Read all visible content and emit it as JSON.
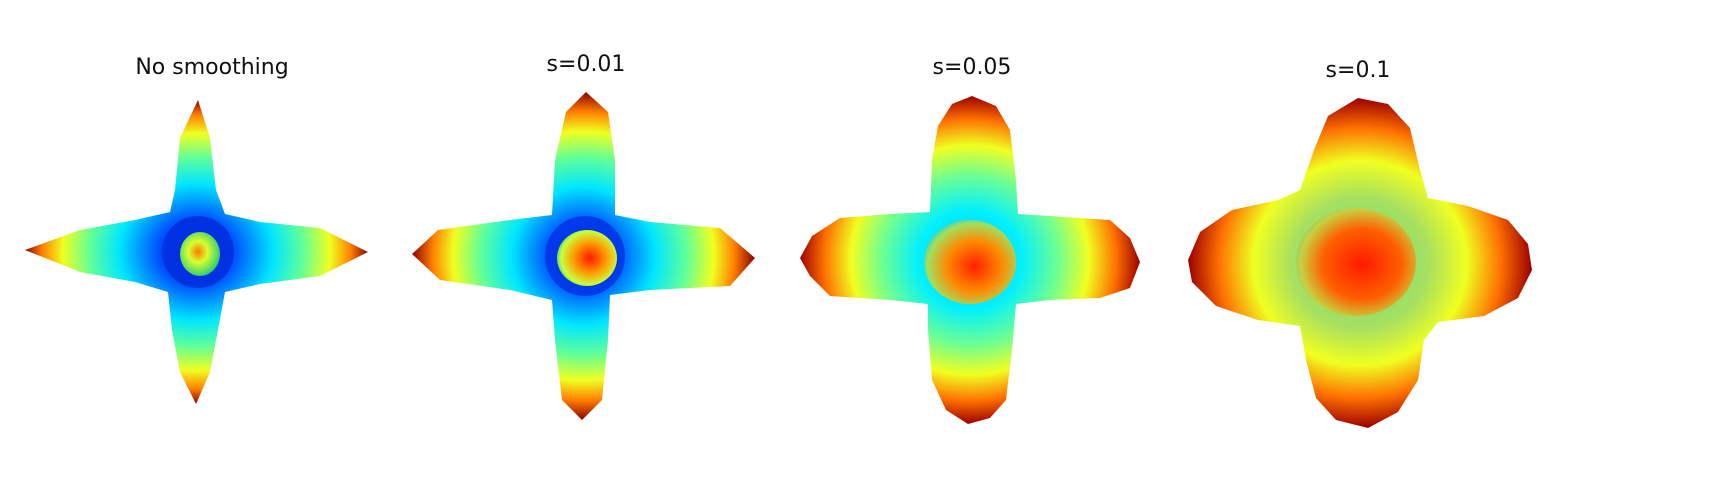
{
  "figure": {
    "panels": [
      {
        "id": "p0",
        "title": "No smoothing",
        "smoothing": null
      },
      {
        "id": "p1",
        "title": "s=0.01",
        "smoothing": 0.01
      },
      {
        "id": "p2",
        "title": "s=0.05",
        "smoothing": 0.05
      },
      {
        "id": "p3",
        "title": "s=0.1",
        "smoothing": 0.1
      }
    ],
    "colormap": [
      "#0000c8",
      "#0050ff",
      "#00e6ff",
      "#60ff9a",
      "#f0ff20",
      "#ffa000",
      "#ff3000",
      "#8a0000"
    ],
    "background": "#ffffff"
  }
}
